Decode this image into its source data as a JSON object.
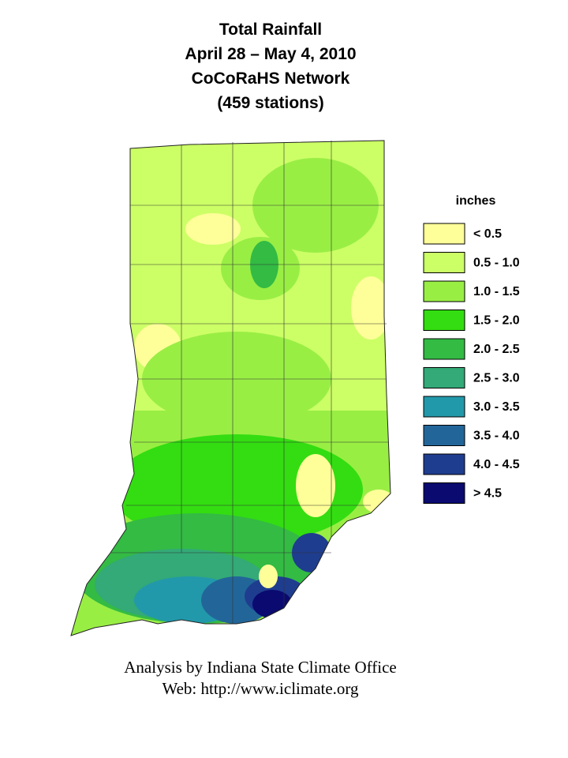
{
  "header": {
    "title_lines": [
      "Total Rainfall",
      "April 28 – May 4, 2010",
      "CoCoRaHS Network",
      "(459 stations)"
    ]
  },
  "legend": {
    "title": "inches",
    "items": [
      {
        "label": "< 0.5",
        "color": "#ffff99"
      },
      {
        "label": "0.5 - 1.0",
        "color": "#ccff66"
      },
      {
        "label": "1.0 - 1.5",
        "color": "#99ee44"
      },
      {
        "label": "1.5 - 2.0",
        "color": "#33dd11"
      },
      {
        "label": "2.0 - 2.5",
        "color": "#33bb44"
      },
      {
        "label": "2.5 - 3.0",
        "color": "#33aa77"
      },
      {
        "label": "3.0 - 3.5",
        "color": "#2299aa"
      },
      {
        "label": "3.5 - 4.0",
        "color": "#226699"
      },
      {
        "label": "4.0 - 4.5",
        "color": "#1f3d8f"
      },
      {
        "label": "> 4.5",
        "color": "#0a0a70"
      }
    ]
  },
  "footer": {
    "lines": [
      "Analysis by Indiana State Climate Office",
      "Web: http://www.iclimate.org"
    ]
  }
}
